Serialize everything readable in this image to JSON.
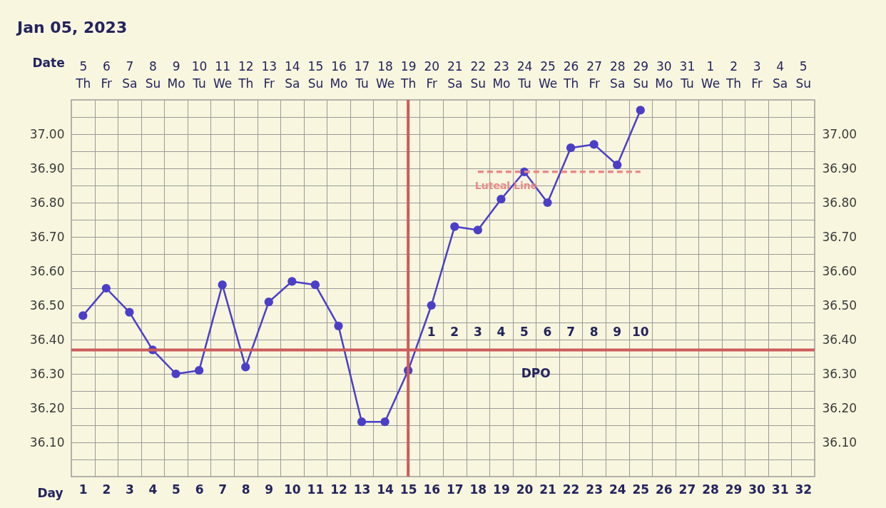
{
  "chart_data": {
    "type": "line",
    "title": "Jan 05, 2023",
    "xlabel": "Day",
    "x2label": "Date",
    "xlim": [
      0.5,
      32.5
    ],
    "xticks": [
      1,
      2,
      3,
      4,
      5,
      6,
      7,
      8,
      9,
      10,
      11,
      12,
      13,
      14,
      15,
      16,
      17,
      18,
      19,
      20,
      21,
      22,
      23,
      24,
      25,
      26,
      27,
      28,
      29,
      30,
      31,
      32
    ],
    "x2lim": [
      "2022-12-04T12:00",
      "2023-01-05T12:00"
    ],
    "x2ticks": [
      {
        "value": "2022-12-05",
        "label": "5\nTh"
      },
      {
        "value": "2022-12-06",
        "label": "6\nFr"
      },
      {
        "value": "2022-12-07",
        "label": "7\nSa"
      },
      {
        "value": "2022-12-08",
        "label": "8\nSu"
      },
      {
        "value": "2022-12-09",
        "label": "9\nMo"
      },
      {
        "value": "2022-12-10",
        "label": "10\nTu"
      },
      {
        "value": "2022-12-11",
        "label": "11\nWe"
      },
      {
        "value": "2022-12-12",
        "label": "12\nTh"
      },
      {
        "value": "2022-12-13",
        "label": "13\nFr"
      },
      {
        "value": "2022-12-14",
        "label": "14\nSa"
      },
      {
        "value": "2022-12-15",
        "label": "15\nSu"
      },
      {
        "value": "2022-12-16",
        "label": "16\nMo"
      },
      {
        "value": "2022-12-17",
        "label": "17\nTu"
      },
      {
        "value": "2022-12-18",
        "label": "18\nWe"
      },
      {
        "value": "2022-12-19",
        "label": "19\nTh"
      },
      {
        "value": "2022-12-20",
        "label": "20\nFr"
      },
      {
        "value": "2022-12-21",
        "label": "21\nSa"
      },
      {
        "value": "2022-12-22",
        "label": "22\nSu"
      },
      {
        "value": "2022-12-23",
        "label": "23\nMo"
      },
      {
        "value": "2022-12-24",
        "label": "24\nTu"
      },
      {
        "value": "2022-12-25",
        "label": "25\nWe"
      },
      {
        "value": "2022-12-26",
        "label": "26\nTh"
      },
      {
        "value": "2022-12-27",
        "label": "27\nFr"
      },
      {
        "value": "2022-12-28",
        "label": "28\nSa"
      },
      {
        "value": "2022-12-29",
        "label": "29\nSu"
      },
      {
        "value": "2022-12-30",
        "label": "30\nMo"
      },
      {
        "value": "2022-12-31",
        "label": "31\nTu"
      },
      {
        "value": "2023-01-01",
        "label": "1\nWe"
      },
      {
        "value": "2023-01-02",
        "label": "2\nTh"
      },
      {
        "value": "2023-01-03",
        "label": "3\nFr"
      },
      {
        "value": "2023-01-04",
        "label": "4\nSa"
      },
      {
        "value": "2023-01-05",
        "label": "5\nSu"
      }
    ],
    "ylim": [
      36.0,
      37.1
    ],
    "yticks": [
      {
        "value": 36.05,
        "label": null
      },
      {
        "value": 36.1,
        "label": "36.10"
      },
      {
        "value": 36.15,
        "label": null
      },
      {
        "value": 36.2,
        "label": "36.20"
      },
      {
        "value": 36.25,
        "label": null
      },
      {
        "value": 36.3,
        "label": "36.30"
      },
      {
        "value": 36.35,
        "label": null
      },
      {
        "value": 36.4,
        "label": "36.40"
      },
      {
        "value": 36.45,
        "label": null
      },
      {
        "value": 36.5,
        "label": "36.50"
      },
      {
        "value": 36.55,
        "label": null
      },
      {
        "value": 36.6,
        "label": "36.60"
      },
      {
        "value": 36.65,
        "label": null
      },
      {
        "value": 36.7,
        "label": "36.70"
      },
      {
        "value": 36.75,
        "label": null
      },
      {
        "value": 36.8,
        "label": "36.80"
      },
      {
        "value": 36.85,
        "label": null
      },
      {
        "value": 36.9,
        "label": "36.90"
      },
      {
        "value": 36.95,
        "label": null
      },
      {
        "value": 37.0,
        "label": "37.00"
      },
      {
        "value": 37.05,
        "label": null
      }
    ],
    "y2lim": [
      36.0,
      37.1
    ],
    "y2ticks": [
      {
        "value": 36.1,
        "label": "36.10"
      },
      {
        "value": 36.2,
        "label": "36.20"
      },
      {
        "value": 36.3,
        "label": "36.30"
      },
      {
        "value": 36.4,
        "label": "36.40"
      },
      {
        "value": 36.5,
        "label": "36.50"
      },
      {
        "value": 36.6,
        "label": "36.60"
      },
      {
        "value": 36.7,
        "label": "36.70"
      },
      {
        "value": 36.8,
        "label": "36.80"
      },
      {
        "value": 36.9,
        "label": "36.90"
      },
      {
        "value": 37.0,
        "label": "37.00"
      }
    ],
    "grid": true,
    "marker": "circle",
    "series": [
      {
        "color": "#4b3fc7",
        "x": [
          1,
          2,
          3,
          4,
          5,
          6,
          7,
          8,
          9,
          10,
          11,
          12,
          13,
          14,
          15,
          16,
          17,
          18,
          19,
          20,
          21,
          22,
          23,
          24,
          25
        ],
        "values": [
          36.47,
          36.55,
          36.48,
          36.37,
          36.3,
          36.31,
          36.56,
          36.32,
          36.51,
          36.57,
          36.56,
          36.44,
          36.16,
          36.16,
          36.31,
          36.5,
          36.73,
          36.72,
          36.81,
          36.89,
          36.8,
          36.96,
          36.97,
          36.91,
          37.07
        ]
      },
      {
        "name": "Luteal Line",
        "color": "#e88a8a",
        "x": [
          18,
          25
        ],
        "values": [
          36.89,
          36.89
        ],
        "marker": "none",
        "line_style": "dashed"
      }
    ],
    "ref_lines": [
      {
        "axis": "x",
        "value": 15,
        "color": "#cc5c5c"
      },
      {
        "axis": "y2",
        "value": 36.37,
        "color": "#cc5c5c"
      }
    ],
    "annotations": [
      "1",
      "2",
      "3",
      "4",
      "5",
      "6",
      "7",
      "8",
      "9",
      "10",
      "DPO"
    ]
  }
}
